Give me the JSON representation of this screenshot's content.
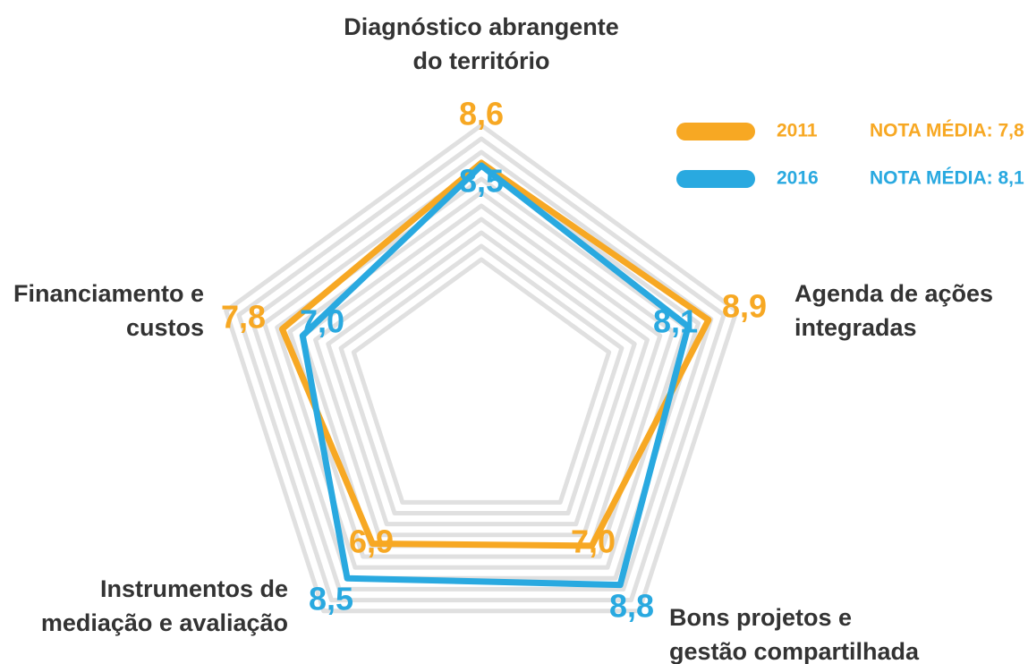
{
  "chart_data": {
    "type": "radar",
    "categories": [
      "Diagnóstico abrangente\ndo território",
      "Agenda de ações\nintegradas",
      "Bons projetos e\ngestão compartilhada",
      "Instrumentos de\nmediação e avaliação",
      "Financiamento e\ncustos"
    ],
    "rlim": [
      0,
      10
    ],
    "rticks": [
      5,
      5.5,
      6,
      6.5,
      7,
      7.5,
      8,
      8.5,
      9,
      9.5,
      10
    ],
    "grid": true,
    "series": [
      {
        "name": "2011",
        "color": "#f7a823",
        "note": "NOTA MÉDIA: 7,8",
        "values": [
          8.6,
          8.9,
          7.0,
          6.9,
          7.8
        ],
        "value_labels": [
          "8,6",
          "8,9",
          "7,0",
          "6,9",
          "7,8"
        ]
      },
      {
        "name": "2016",
        "color": "#29a9e0",
        "note": "NOTA MÉDIA: 8,1",
        "values": [
          8.5,
          8.1,
          8.8,
          8.5,
          7.0
        ],
        "value_labels": [
          "8,5",
          "8,1",
          "8,8",
          "8,5",
          "7,0"
        ]
      }
    ]
  }
}
